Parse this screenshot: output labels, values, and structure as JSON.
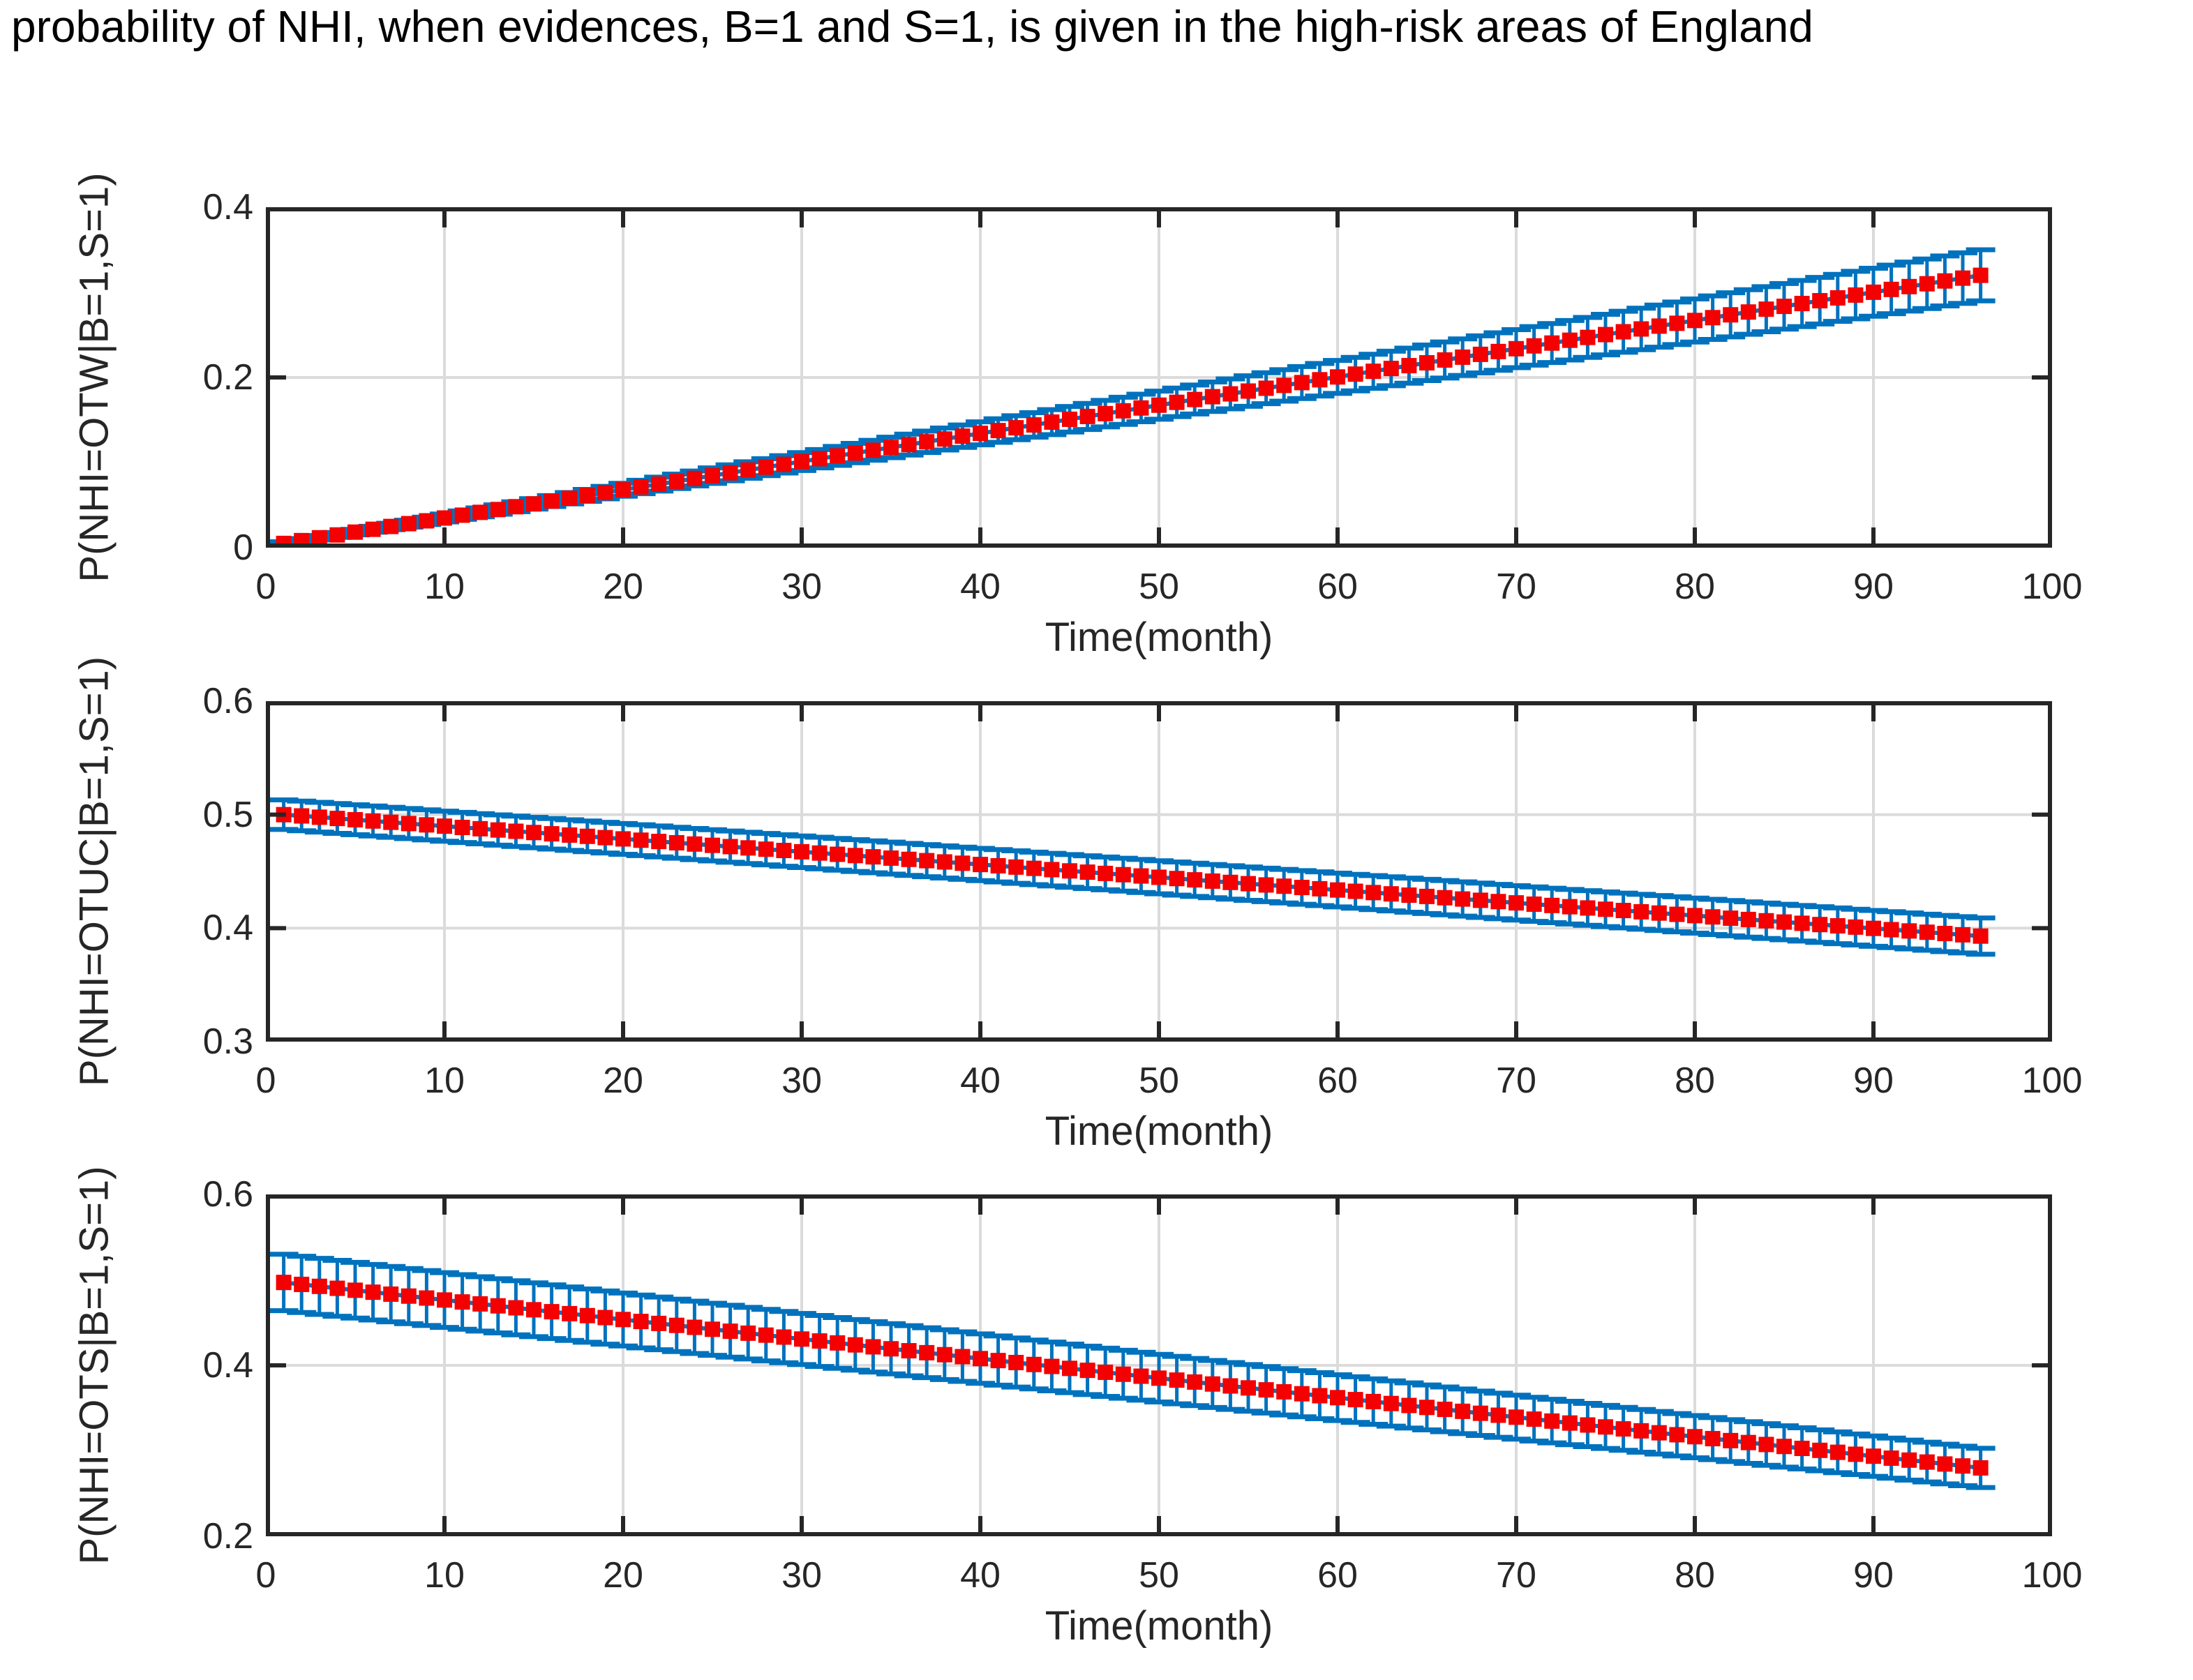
{
  "title": "probability of NHI, when evidences, B=1 and S=1, is given in the high-risk areas of England",
  "chart_data": [
    {
      "type": "line",
      "subtype": "errorbar-series",
      "ylabel": "P(NHI=OTW|B=1,S=1)",
      "xlabel": "Time(month)",
      "xlim": [
        0,
        100
      ],
      "ylim": [
        0,
        0.4
      ],
      "xticks": [
        0,
        10,
        20,
        30,
        40,
        50,
        60,
        70,
        80,
        90,
        100
      ],
      "xtick_labels": [
        "0",
        "10",
        "20",
        "30",
        "40",
        "50",
        "60",
        "70",
        "80",
        "90",
        "100"
      ],
      "yticks": [
        0,
        0.2,
        0.4
      ],
      "ytick_labels": [
        "0",
        "0.2",
        "0.4"
      ],
      "grid": true,
      "line_color": "#0072bd",
      "marker": "filled-square",
      "marker_color": "#f40000",
      "month_start": 1,
      "month_end": 96,
      "n_points": 96,
      "anchor_months": [
        1,
        6,
        12,
        18,
        24,
        30,
        36,
        42,
        48,
        54,
        60,
        66,
        72,
        78,
        84,
        90,
        96
      ],
      "values": [
        0.005,
        0.0216,
        0.0415,
        0.0614,
        0.0813,
        0.1012,
        0.1211,
        0.1409,
        0.1608,
        0.1807,
        0.2006,
        0.2205,
        0.2404,
        0.2603,
        0.2802,
        0.3001,
        0.32
      ],
      "errors": [
        0.002,
        0.0035,
        0.0052,
        0.007,
        0.0088,
        0.0105,
        0.0123,
        0.0141,
        0.0159,
        0.0176,
        0.0194,
        0.0212,
        0.0229,
        0.0247,
        0.0265,
        0.0282,
        0.03
      ]
    },
    {
      "type": "line",
      "subtype": "errorbar-series",
      "ylabel": "P(NHI=OTUC|B=1,S=1)",
      "xlabel": "Time(month)",
      "xlim": [
        0,
        100
      ],
      "ylim": [
        0.3,
        0.6
      ],
      "xticks": [
        0,
        10,
        20,
        30,
        40,
        50,
        60,
        70,
        80,
        90,
        100
      ],
      "xtick_labels": [
        "0",
        "10",
        "20",
        "30",
        "40",
        "50",
        "60",
        "70",
        "80",
        "90",
        "100"
      ],
      "yticks": [
        0.3,
        0.4,
        0.5,
        0.6
      ],
      "ytick_labels": [
        "0.3",
        "0.4",
        "0.5",
        "0.6"
      ],
      "grid": true,
      "line_color": "#0072bd",
      "marker": "filled-square",
      "marker_color": "#f40000",
      "month_start": 1,
      "month_end": 96,
      "n_points": 96,
      "anchor_months": [
        1,
        6,
        12,
        18,
        24,
        30,
        36,
        42,
        48,
        54,
        60,
        66,
        72,
        78,
        84,
        90,
        96
      ],
      "values": [
        0.5,
        0.4944,
        0.4876,
        0.4809,
        0.4741,
        0.4673,
        0.4606,
        0.4538,
        0.4471,
        0.4403,
        0.4336,
        0.4268,
        0.42,
        0.4133,
        0.4065,
        0.3998,
        0.393
      ],
      "errors": [
        0.013,
        0.0132,
        0.0133,
        0.0135,
        0.0137,
        0.0139,
        0.0141,
        0.0143,
        0.0145,
        0.0147,
        0.0149,
        0.0151,
        0.0152,
        0.0154,
        0.0156,
        0.0158,
        0.016
      ]
    },
    {
      "type": "line",
      "subtype": "errorbar-series",
      "ylabel": "P(NHI=OTS|B=1,S=1)",
      "xlabel": "Time(month)",
      "xlim": [
        0,
        100
      ],
      "ylim": [
        0.2,
        0.6
      ],
      "xticks": [
        0,
        10,
        20,
        30,
        40,
        50,
        60,
        70,
        80,
        90,
        100
      ],
      "xtick_labels": [
        "0",
        "10",
        "20",
        "30",
        "40",
        "50",
        "60",
        "70",
        "80",
        "90",
        "100"
      ],
      "yticks": [
        0.2,
        0.4,
        0.6
      ],
      "ytick_labels": [
        "0.2",
        "0.4",
        "0.6"
      ],
      "grid": true,
      "line_color": "#0072bd",
      "marker": "filled-square",
      "marker_color": "#f40000",
      "month_start": 1,
      "month_end": 96,
      "n_points": 96,
      "anchor_months": [
        1,
        6,
        12,
        18,
        24,
        30,
        36,
        42,
        48,
        54,
        60,
        66,
        72,
        78,
        84,
        90,
        96
      ],
      "values": [
        0.497,
        0.4856,
        0.4719,
        0.4582,
        0.4445,
        0.4308,
        0.4171,
        0.4033,
        0.3896,
        0.3759,
        0.3622,
        0.3485,
        0.3348,
        0.3211,
        0.3074,
        0.2937,
        0.28
      ],
      "errors": [
        0.033,
        0.0325,
        0.0318,
        0.0312,
        0.0306,
        0.0299,
        0.0293,
        0.0287,
        0.0281,
        0.0274,
        0.0268,
        0.0262,
        0.0255,
        0.0249,
        0.0243,
        0.0236,
        0.023
      ]
    }
  ],
  "style": {
    "axis_color": "#262626",
    "grid_color": "#dbdbdb",
    "background": "#ffffff"
  }
}
